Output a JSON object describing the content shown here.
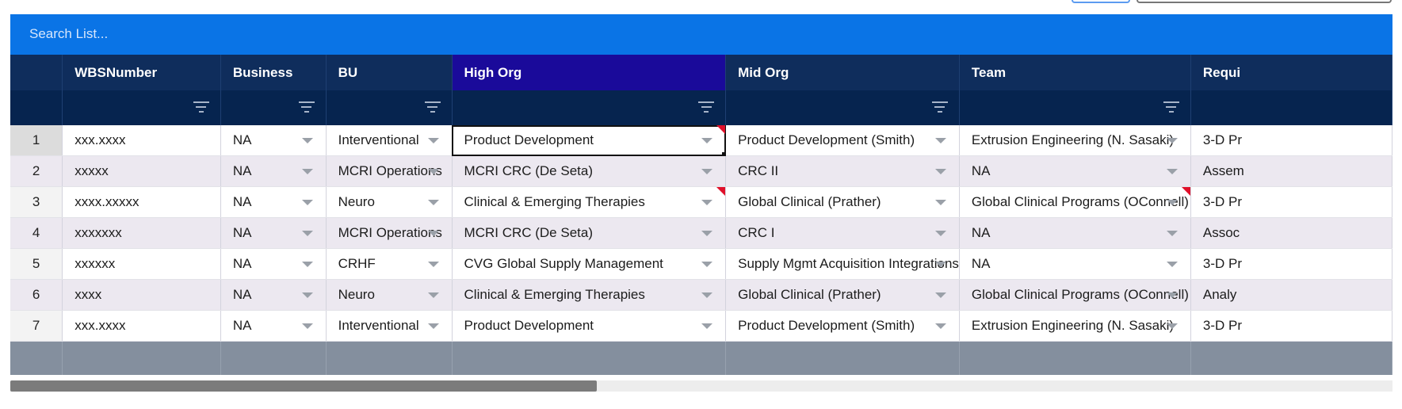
{
  "search": {
    "placeholder": "Search List..."
  },
  "columns": [
    {
      "key": "wbs",
      "label": "WBSNumber"
    },
    {
      "key": "business",
      "label": "Business"
    },
    {
      "key": "bu",
      "label": "BU"
    },
    {
      "key": "high_org",
      "label": "High Org"
    },
    {
      "key": "mid_org",
      "label": "Mid Org"
    },
    {
      "key": "team",
      "label": "Team"
    },
    {
      "key": "requi",
      "label": "Requi"
    }
  ],
  "rows": [
    {
      "num": "1",
      "wbs": "xxx.xxxx",
      "business": "NA",
      "bu": "Interventional",
      "high_org": "Product Development",
      "mid_org": "Product Development (Smith)",
      "team": "Extrusion Engineering (N. Sasaki)",
      "requi": "3-D Pr"
    },
    {
      "num": "2",
      "wbs": "xxxxx",
      "business": "NA",
      "bu": "MCRI Operations",
      "high_org": "MCRI CRC (De Seta)",
      "mid_org": "CRC II",
      "team": "NA",
      "requi": "Assem"
    },
    {
      "num": "3",
      "wbs": "xxxx.xxxxx",
      "business": "NA",
      "bu": "Neuro",
      "high_org": "Clinical & Emerging Therapies",
      "mid_org": "Global Clinical (Prather)",
      "team": "Global Clinical Programs (OConnell)",
      "requi": "3-D Pr"
    },
    {
      "num": "4",
      "wbs": "xxxxxxx",
      "business": "NA",
      "bu": "MCRI Operations",
      "high_org": "MCRI CRC (De Seta)",
      "mid_org": "CRC I",
      "team": "NA",
      "requi": "Assoc"
    },
    {
      "num": "5",
      "wbs": "xxxxxx",
      "business": "NA",
      "bu": "CRHF",
      "high_org": "CVG Global Supply Management",
      "mid_org": "Supply Mgmt Acquisition Integrations",
      "team": "NA",
      "requi": "3-D Pr"
    },
    {
      "num": "6",
      "wbs": "xxxx",
      "business": "NA",
      "bu": "Neuro",
      "high_org": "Clinical & Emerging Therapies",
      "mid_org": "Global Clinical (Prather)",
      "team": "Global Clinical Programs (OConnell)",
      "requi": "Analy"
    },
    {
      "num": "7",
      "wbs": "xxx.xxxx",
      "business": "NA",
      "bu": "Interventional",
      "high_org": "Product Development",
      "mid_org": "Product Development (Smith)",
      "team": "Extrusion Engineering (N. Sasaki)",
      "requi": "3-D Pr"
    }
  ],
  "colors": {
    "search_bar": "#0a74e6",
    "header": "#0f2d5c",
    "selected_header": "#1a0a9a",
    "filter_row": "#06244f",
    "footer": "#848f9e",
    "flag": "#e0102a"
  }
}
